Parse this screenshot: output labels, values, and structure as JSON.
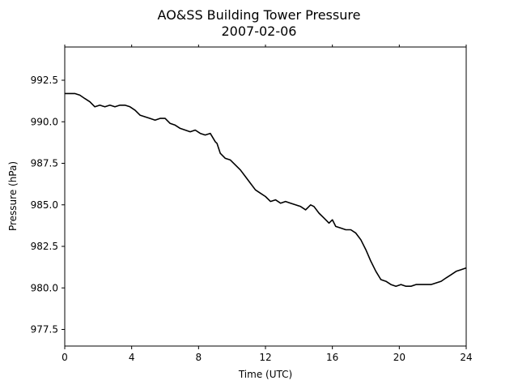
{
  "chart_data": {
    "type": "line",
    "title_line1": "AO&SS Building Tower Pressure",
    "title_line2": "2007-02-06",
    "xlabel": "Time (UTC)",
    "ylabel": "Pressure (hPa)",
    "xlim": [
      0,
      24
    ],
    "ylim": [
      976.5,
      994.5
    ],
    "x_ticks": [
      0,
      4,
      8,
      12,
      16,
      20,
      24
    ],
    "x_tick_labels": [
      "0",
      "4",
      "8",
      "12",
      "16",
      "20",
      "24"
    ],
    "y_ticks": [
      977.5,
      980.0,
      982.5,
      985.0,
      987.5,
      990.0,
      992.5
    ],
    "y_tick_labels": [
      "977.5",
      "980.0",
      "982.5",
      "985.0",
      "987.5",
      "990.0",
      "992.5"
    ],
    "grid": false,
    "line_color": "#000000",
    "series": [
      {
        "x": [
          0,
          0.3,
          0.6,
          0.9,
          1.2,
          1.5,
          1.8,
          2.1,
          2.4,
          2.7,
          3.0,
          3.3,
          3.6,
          3.9,
          4.2,
          4.5,
          4.8,
          5.1,
          5.4,
          5.7,
          6.0,
          6.3,
          6.6,
          6.9,
          7.2,
          7.5,
          7.8,
          8.1,
          8.4,
          8.7,
          9.0,
          9.1,
          9.3,
          9.6,
          9.9,
          10.2,
          10.5,
          10.8,
          11.1,
          11.4,
          11.7,
          12.0,
          12.3,
          12.6,
          12.9,
          13.2,
          13.5,
          13.8,
          14.1,
          14.4,
          14.7,
          14.9,
          15.2,
          15.5,
          15.8,
          16.0,
          16.2,
          16.5,
          16.8,
          17.1,
          17.4,
          17.7,
          18.0,
          18.3,
          18.6,
          18.9,
          19.2,
          19.5,
          19.8,
          20.1,
          20.4,
          20.7,
          21.0,
          21.3,
          21.6,
          21.9,
          22.2,
          22.5,
          22.8,
          23.1,
          23.4,
          23.7,
          24.0
        ],
        "y": [
          991.7,
          991.7,
          991.7,
          991.6,
          991.4,
          991.2,
          990.9,
          991.0,
          990.9,
          991.0,
          990.9,
          991.0,
          991.0,
          990.9,
          990.7,
          990.4,
          990.3,
          990.2,
          990.1,
          990.2,
          990.2,
          989.9,
          989.8,
          989.6,
          989.5,
          989.4,
          989.5,
          989.3,
          989.2,
          989.3,
          988.8,
          988.7,
          988.1,
          987.8,
          987.7,
          987.4,
          987.1,
          986.7,
          986.3,
          985.9,
          985.7,
          985.5,
          985.2,
          985.3,
          985.1,
          985.2,
          985.1,
          985.0,
          984.9,
          984.7,
          985.0,
          984.9,
          984.5,
          984.2,
          983.9,
          984.1,
          983.7,
          983.6,
          983.5,
          983.5,
          983.3,
          982.9,
          982.3,
          981.6,
          981.0,
          980.5,
          980.4,
          980.2,
          980.1,
          980.2,
          980.1,
          980.1,
          980.2,
          980.2,
          980.2,
          980.2,
          980.3,
          980.4,
          980.6,
          980.8,
          981.0,
          981.1,
          981.2
        ]
      }
    ]
  }
}
